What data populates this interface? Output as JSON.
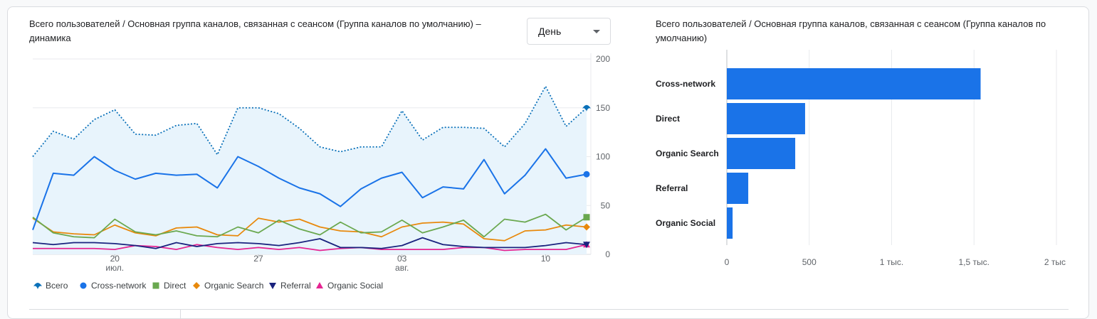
{
  "left_panel": {
    "title": "Всего пользователей / Основная группа каналов, связанная с сеансом (Группа каналов по умолчанию) – динамика",
    "granularity": "День"
  },
  "right_panel": {
    "title": "Всего пользователей / Основная группа каналов, связанная с сеансом (Группа каналов по умолчанию)"
  },
  "chart_data": [
    {
      "type": "line",
      "x_tick_labels": [
        {
          "day": 4,
          "label": "20",
          "sub": "июл."
        },
        {
          "day": 11,
          "label": "27",
          "sub": ""
        },
        {
          "day": 18,
          "label": "03",
          "sub": "авг."
        },
        {
          "day": 25,
          "label": "10",
          "sub": ""
        }
      ],
      "ylim": [
        0,
        200
      ],
      "y_ticks": [
        0,
        50,
        100,
        150,
        200
      ],
      "grid": true,
      "legend_position": "bottom-left",
      "series": [
        {
          "name": "Всего",
          "style": "dotted",
          "area": true,
          "color": "#1a73e8",
          "marker": "pin",
          "values": [
            100,
            126,
            118,
            138,
            148,
            123,
            122,
            132,
            134,
            102,
            150,
            150,
            144,
            129,
            110,
            105,
            110,
            110,
            147,
            117,
            130,
            130,
            129,
            110,
            134,
            172,
            131,
            150
          ]
        },
        {
          "name": "Cross-network",
          "style": "solid",
          "color": "#1a73e8",
          "marker": "circle",
          "values": [
            25,
            83,
            81,
            100,
            86,
            77,
            83,
            81,
            82,
            68,
            100,
            90,
            78,
            68,
            62,
            49,
            67,
            78,
            84,
            58,
            69,
            67,
            97,
            62,
            81,
            108,
            78,
            82
          ]
        },
        {
          "name": "Direct",
          "style": "solid",
          "color": "#6aa84f",
          "marker": "square",
          "values": [
            38,
            22,
            18,
            17,
            36,
            23,
            20,
            24,
            19,
            18,
            28,
            22,
            35,
            26,
            20,
            33,
            22,
            23,
            35,
            22,
            28,
            35,
            18,
            36,
            33,
            41,
            25,
            38
          ]
        },
        {
          "name": "Organic Search",
          "style": "solid",
          "color": "#e8890c",
          "marker": "diamond",
          "values": [
            37,
            23,
            21,
            20,
            30,
            22,
            19,
            27,
            28,
            20,
            19,
            37,
            33,
            36,
            28,
            24,
            23,
            18,
            28,
            32,
            33,
            31,
            16,
            14,
            24,
            25,
            30,
            28
          ]
        },
        {
          "name": "Referral",
          "style": "solid",
          "color": "#1a237e",
          "marker": "triangle-down",
          "values": [
            12,
            10,
            12,
            12,
            11,
            9,
            6,
            12,
            8,
            11,
            12,
            11,
            9,
            12,
            16,
            7,
            7,
            6,
            9,
            17,
            10,
            8,
            7,
            7,
            7,
            9,
            12,
            10
          ]
        },
        {
          "name": "Organic Social",
          "style": "solid",
          "color": "#e52592",
          "marker": "triangle-up",
          "values": [
            6,
            6,
            6,
            6,
            5,
            9,
            8,
            5,
            10,
            7,
            5,
            7,
            5,
            7,
            4,
            6,
            7,
            5,
            5,
            5,
            5,
            7,
            7,
            4,
            5,
            5,
            5,
            10
          ]
        }
      ]
    },
    {
      "type": "bar",
      "orientation": "horizontal",
      "categories": [
        "Cross-network",
        "Direct",
        "Organic Search",
        "Referral",
        "Organic Social"
      ],
      "values": [
        1540,
        475,
        415,
        130,
        35
      ],
      "xlim": [
        0,
        2000
      ],
      "x_ticks": [
        0,
        500,
        1000,
        1500,
        2000
      ],
      "x_tick_labels": [
        "0",
        "500",
        "1 тыс.",
        "1,5 тыс.",
        "2 тыс"
      ],
      "bar_color": "#1a73e8",
      "grid": true
    }
  ]
}
